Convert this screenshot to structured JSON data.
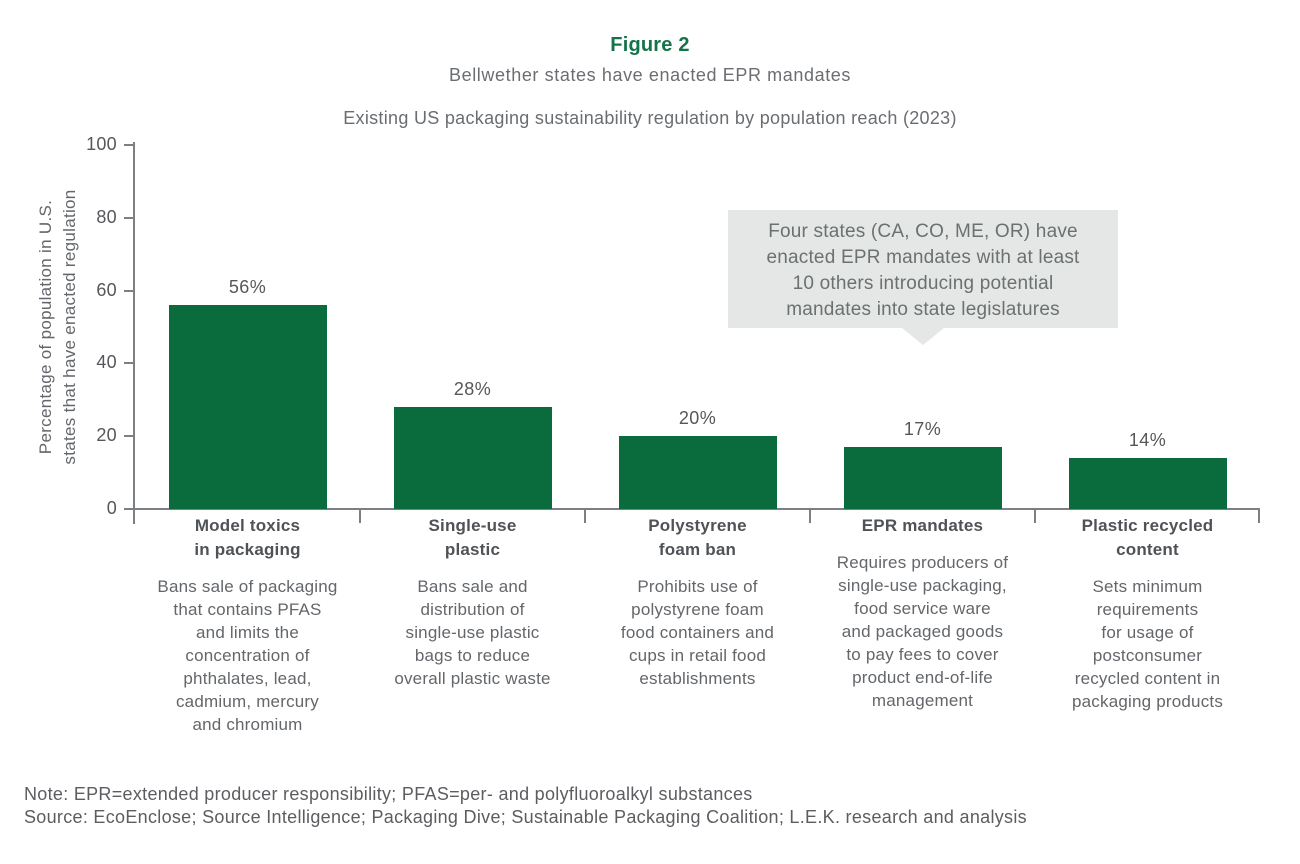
{
  "figure": {
    "label": "Figure 2",
    "title": "Bellwether states have enacted EPR mandates",
    "chart_title": "Existing US packaging sustainability regulation by population reach (2023)"
  },
  "chart_data": {
    "type": "bar",
    "title": "Existing US packaging sustainability regulation by population reach (2023)",
    "categories": [
      "Model toxics in packaging",
      "Single-use plastic",
      "Polystyrene foam ban",
      "EPR mandates",
      "Plastic recycled content"
    ],
    "category_labels": [
      "Model toxics\nin packaging",
      "Single-use\nplastic",
      "Polystyrene\nfoam ban",
      "EPR mandates",
      "Plastic recycled\ncontent"
    ],
    "values": [
      56,
      28,
      20,
      17,
      14
    ],
    "value_labels": [
      "56%",
      "28%",
      "20%",
      "17%",
      "14%"
    ],
    "descriptions": [
      "Bans sale of packaging\nthat contains PFAS\nand limits the\nconcentration of\nphthalates, lead,\ncadmium, mercury\nand chromium",
      "Bans sale and\ndistribution of\nsingle-use plastic\nbags to reduce\noverall plastic waste",
      "Prohibits use of\npolystyrene foam\nfood containers and\ncups in retail food\nestablishments",
      "Requires producers of\nsingle-use packaging,\nfood service ware\nand packaged goods\nto pay fees to cover\nproduct end-of-life\nmanagement",
      "Sets minimum\nrequirements\nfor usage of\npostconsumer\nrecycled content in\npackaging products"
    ],
    "xlabel": "",
    "ylabel": "Percentage of population in U.S.\nstates that have enacted regulation",
    "ylim": [
      0,
      100
    ],
    "yticks": [
      0,
      20,
      40,
      60,
      80,
      100
    ],
    "grid": false,
    "legend": "none",
    "bar_color": "#0a6b3d",
    "annotation": {
      "text": "Four states (CA, CO, ME, OR) have\nenacted EPR mandates with at least\n10 others introducing potential\nmandates into state legislatures",
      "points_to": "EPR mandates"
    }
  },
  "footer": {
    "note": "Note: EPR=extended producer responsibility; PFAS=per- and polyfluoroalkyl substances",
    "source": "Source: EcoEnclose; Source Intelligence; Packaging Dive; Sustainable Packaging Coalition; L.E.K. research and analysis"
  },
  "colors": {
    "bar_green": "#0a6b3d",
    "figure_label_green": "#15734a",
    "annotation_background": "#e5e7e6",
    "axis_gray": "#7d8083",
    "text_gray": "#63666a",
    "dark_label_gray": "#4f5256"
  }
}
